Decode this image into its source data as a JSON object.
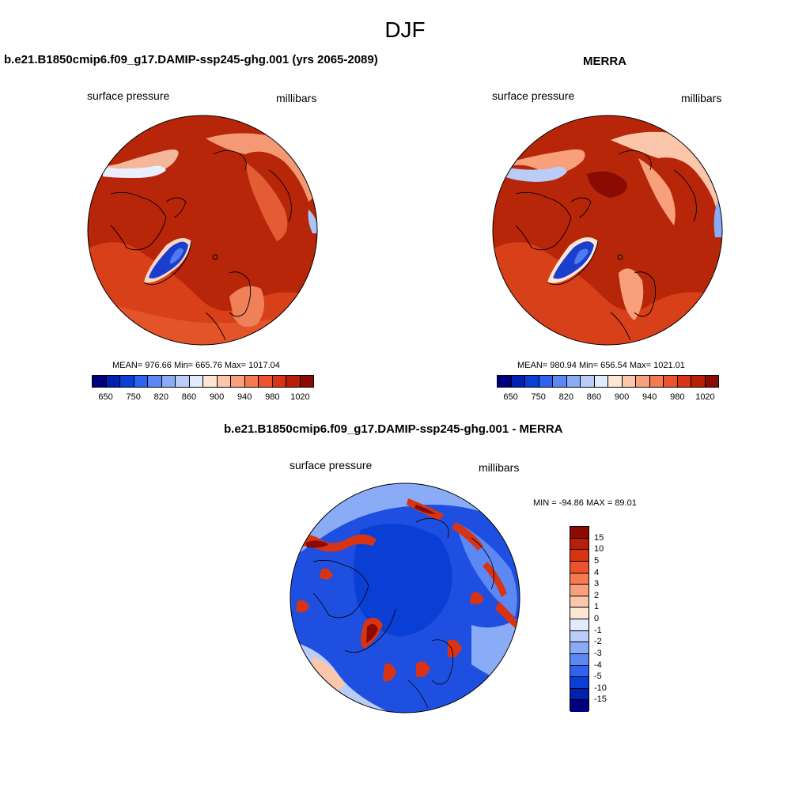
{
  "title": "DJF",
  "panels": [
    {
      "title": "b.e21.B1850cmip6.f09_g17.DAMIP-ssp245-ghg.001 (yrs 2065-2089)",
      "left_label": "surface pressure",
      "right_label": "millibars",
      "stats": "MEAN= 976.66  Min= 665.76  Max= 1017.04"
    },
    {
      "title": "MERRA",
      "left_label": "surface pressure",
      "right_label": "millibars",
      "stats": "MEAN= 980.94  Min= 656.54  Max= 1021.01"
    },
    {
      "title": "b.e21.B1850cmip6.f09_g17.DAMIP-ssp245-ghg.001 - MERRA",
      "left_label": "surface pressure",
      "right_label": "millibars",
      "stats": "MIN = -94.86 MAX =  89.01"
    }
  ],
  "colorbar_main": {
    "colors": [
      "#00007f",
      "#0020b0",
      "#0a3fd6",
      "#2f63ef",
      "#5b88f3",
      "#8aabf5",
      "#b9cdf8",
      "#e1ebfb",
      "#fde6d4",
      "#fbc6aa",
      "#f8a07c",
      "#f47a50",
      "#ec532c",
      "#d83414",
      "#b81e08",
      "#8a0b02"
    ],
    "tick_labels": [
      "650",
      "750",
      "820",
      "860",
      "900",
      "940",
      "980",
      "1020"
    ]
  },
  "colorbar_diff": {
    "colors": [
      "#8a0b02",
      "#b81e08",
      "#d83414",
      "#ec532c",
      "#f47a50",
      "#f8a07c",
      "#fbc6aa",
      "#fde6d4",
      "#e1ebfb",
      "#b9cdf8",
      "#8aabf5",
      "#5b88f3",
      "#2f63ef",
      "#0a3fd6",
      "#0020b0",
      "#00007f"
    ],
    "tick_labels": [
      "15",
      "10",
      "5",
      "4",
      "3",
      "2",
      "1",
      "0",
      "-1",
      "-2",
      "-3",
      "-4",
      "-5",
      "-10",
      "-15"
    ]
  }
}
